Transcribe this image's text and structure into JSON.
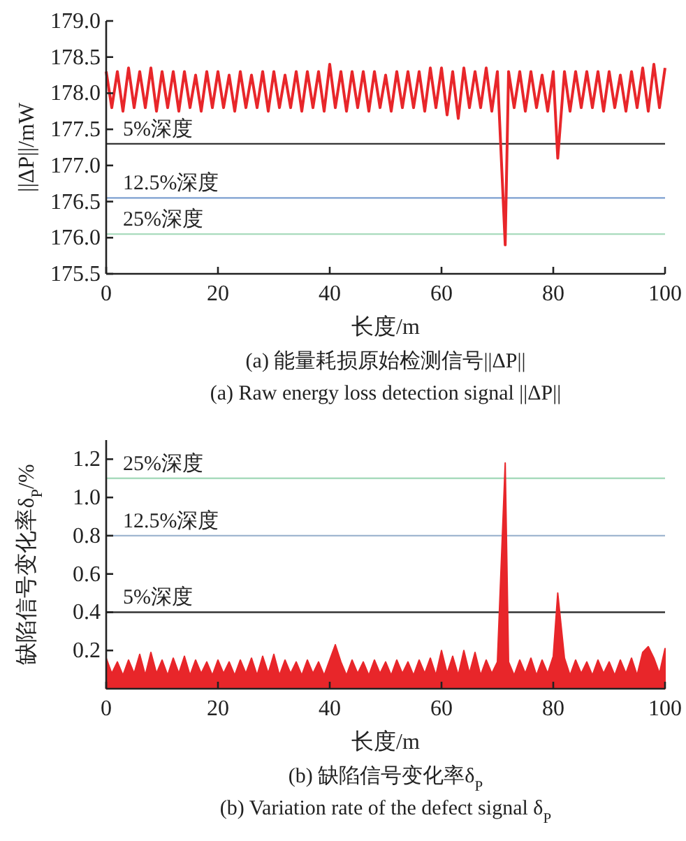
{
  "chart_data": [
    {
      "type": "line",
      "title": "(a) 能量耗损原始检测信号||ΔP||",
      "subtitle": "(a) Raw energy loss detection signal ||ΔP||",
      "xlabel": "长度/m",
      "ylabel": "||ΔP||/mW",
      "x": [
        0,
        1,
        2,
        3,
        4,
        5,
        6,
        7,
        8,
        9,
        10,
        11,
        12,
        13,
        14,
        15,
        16,
        17,
        18,
        19,
        20,
        21,
        22,
        23,
        24,
        25,
        26,
        27,
        28,
        29,
        30,
        31,
        32,
        33,
        34,
        35,
        36,
        37,
        38,
        39,
        40,
        41,
        42,
        43,
        44,
        45,
        46,
        47,
        48,
        49,
        50,
        51,
        52,
        53,
        54,
        55,
        56,
        57,
        58,
        59,
        60,
        61,
        62,
        63,
        64,
        65,
        66,
        67,
        68,
        69,
        70,
        71.4,
        72,
        73,
        74,
        75,
        76,
        77,
        78,
        79,
        80,
        80.8,
        82,
        83,
        84,
        85,
        86,
        87,
        88,
        89,
        90,
        91,
        92,
        93,
        94,
        95,
        96,
        97,
        98,
        99,
        100
      ],
      "series": [
        {
          "color": "#e8262a",
          "values": [
            178.3,
            177.8,
            178.3,
            177.75,
            178.35,
            177.8,
            178.3,
            177.8,
            178.35,
            177.75,
            178.3,
            177.8,
            178.3,
            177.75,
            178.3,
            177.8,
            178.25,
            177.75,
            178.3,
            177.8,
            178.3,
            177.8,
            178.25,
            177.75,
            178.3,
            177.8,
            178.25,
            177.8,
            178.3,
            177.75,
            178.3,
            177.8,
            178.25,
            177.8,
            178.3,
            177.75,
            178.3,
            177.8,
            178.3,
            177.75,
            178.4,
            177.8,
            178.3,
            177.75,
            178.3,
            177.8,
            178.3,
            177.75,
            178.3,
            177.8,
            178.25,
            177.75,
            178.3,
            177.8,
            178.3,
            177.8,
            178.3,
            177.75,
            178.35,
            177.8,
            178.35,
            177.7,
            178.3,
            177.65,
            178.35,
            177.8,
            178.3,
            177.8,
            178.35,
            177.75,
            178.3,
            175.9,
            178.3,
            177.8,
            178.3,
            177.75,
            178.3,
            177.8,
            178.25,
            177.75,
            178.3,
            177.1,
            178.3,
            177.75,
            178.3,
            177.8,
            178.3,
            177.8,
            178.3,
            177.75,
            178.3,
            177.8,
            178.25,
            177.75,
            178.3,
            177.8,
            178.35,
            177.75,
            178.4,
            177.8,
            178.35
          ]
        }
      ],
      "xlim": [
        0,
        100
      ],
      "xticks": [
        0,
        20,
        40,
        60,
        80,
        100
      ],
      "ylim": [
        175.5,
        179
      ],
      "yticks": [
        {
          "value": 175.5,
          "label": "175.5"
        },
        {
          "value": 176,
          "label": "176.0"
        },
        {
          "value": 176.5,
          "label": "176.5"
        },
        {
          "value": 177,
          "label": "177.0"
        },
        {
          "value": 177.5,
          "label": "177.5"
        },
        {
          "value": 178,
          "label": "178.0"
        },
        {
          "value": 178.5,
          "label": "178.5"
        },
        {
          "value": 179,
          "label": "179.0"
        }
      ],
      "ref_lines": [
        {
          "axis": "y",
          "value": 177.3,
          "label": "5%深度",
          "color": "#333333"
        },
        {
          "axis": "y",
          "value": 176.55,
          "label": "12.5%深度",
          "color": "#7c9fd0"
        },
        {
          "axis": "y",
          "value": 176.05,
          "label": "25%深度",
          "color": "#a9dbbd"
        }
      ]
    },
    {
      "type": "area",
      "title": "(b) 缺陷信号变化率δ$_{P}$",
      "subtitle": "(b) Variation rate of the defect signal δ$_{P}$",
      "xlabel": "长度/m",
      "ylabel": "缺陷信号变化率δ$_{P}$/%",
      "x": [
        0,
        1,
        2,
        3,
        4,
        5,
        6,
        7,
        8,
        9,
        10,
        11,
        12,
        13,
        14,
        15,
        16,
        17,
        18,
        19,
        20,
        21,
        22,
        23,
        24,
        25,
        26,
        27,
        28,
        29,
        30,
        31,
        32,
        33,
        34,
        35,
        36,
        37,
        38,
        39,
        40,
        41,
        42,
        43,
        44,
        45,
        46,
        47,
        48,
        49,
        50,
        51,
        52,
        53,
        54,
        55,
        56,
        57,
        58,
        59,
        60,
        61,
        62,
        63,
        64,
        65,
        66,
        67,
        68,
        69,
        70,
        71.4,
        72,
        73,
        74,
        75,
        76,
        77,
        78,
        79,
        80,
        80.8,
        82,
        83,
        84,
        85,
        86,
        87,
        88,
        89,
        90,
        91,
        92,
        93,
        94,
        95,
        96,
        97,
        98,
        99,
        100
      ],
      "series": [
        {
          "color": "#e8262a",
          "values": [
            0.16,
            0.08,
            0.14,
            0.07,
            0.15,
            0.08,
            0.18,
            0.07,
            0.19,
            0.08,
            0.15,
            0.07,
            0.16,
            0.08,
            0.17,
            0.07,
            0.15,
            0.08,
            0.14,
            0.07,
            0.15,
            0.08,
            0.14,
            0.07,
            0.15,
            0.08,
            0.16,
            0.07,
            0.17,
            0.08,
            0.18,
            0.07,
            0.15,
            0.08,
            0.14,
            0.07,
            0.15,
            0.08,
            0.14,
            0.07,
            0.15,
            0.23,
            0.14,
            0.07,
            0.15,
            0.08,
            0.14,
            0.07,
            0.15,
            0.08,
            0.14,
            0.07,
            0.15,
            0.08,
            0.14,
            0.07,
            0.15,
            0.08,
            0.16,
            0.07,
            0.2,
            0.08,
            0.17,
            0.07,
            0.2,
            0.08,
            0.19,
            0.07,
            0.15,
            0.08,
            0.14,
            1.18,
            0.14,
            0.07,
            0.15,
            0.08,
            0.16,
            0.07,
            0.15,
            0.08,
            0.17,
            0.5,
            0.16,
            0.07,
            0.15,
            0.08,
            0.14,
            0.07,
            0.15,
            0.08,
            0.14,
            0.07,
            0.15,
            0.08,
            0.16,
            0.07,
            0.19,
            0.22,
            0.16,
            0.08,
            0.21
          ]
        }
      ],
      "xlim": [
        0,
        100
      ],
      "xticks": [
        0,
        20,
        40,
        60,
        80,
        100
      ],
      "ylim": [
        0,
        1.3
      ],
      "yticks": [
        {
          "value": 0.2,
          "label": "0.2"
        },
        {
          "value": 0.4,
          "label": "0.4"
        },
        {
          "value": 0.6,
          "label": "0.6"
        },
        {
          "value": 0.8,
          "label": "0.8"
        },
        {
          "value": 1,
          "label": "1.0"
        },
        {
          "value": 1.2,
          "label": "1.2"
        }
      ],
      "ref_lines": [
        {
          "axis": "y",
          "value": 1.1,
          "label": "25%深度",
          "color": "#a9dbbd"
        },
        {
          "axis": "y",
          "value": 0.8,
          "label": "12.5%深度",
          "color": "#9fb6d0"
        },
        {
          "axis": "y",
          "value": 0.4,
          "label": "5%深度",
          "color": "#333333"
        }
      ]
    }
  ]
}
